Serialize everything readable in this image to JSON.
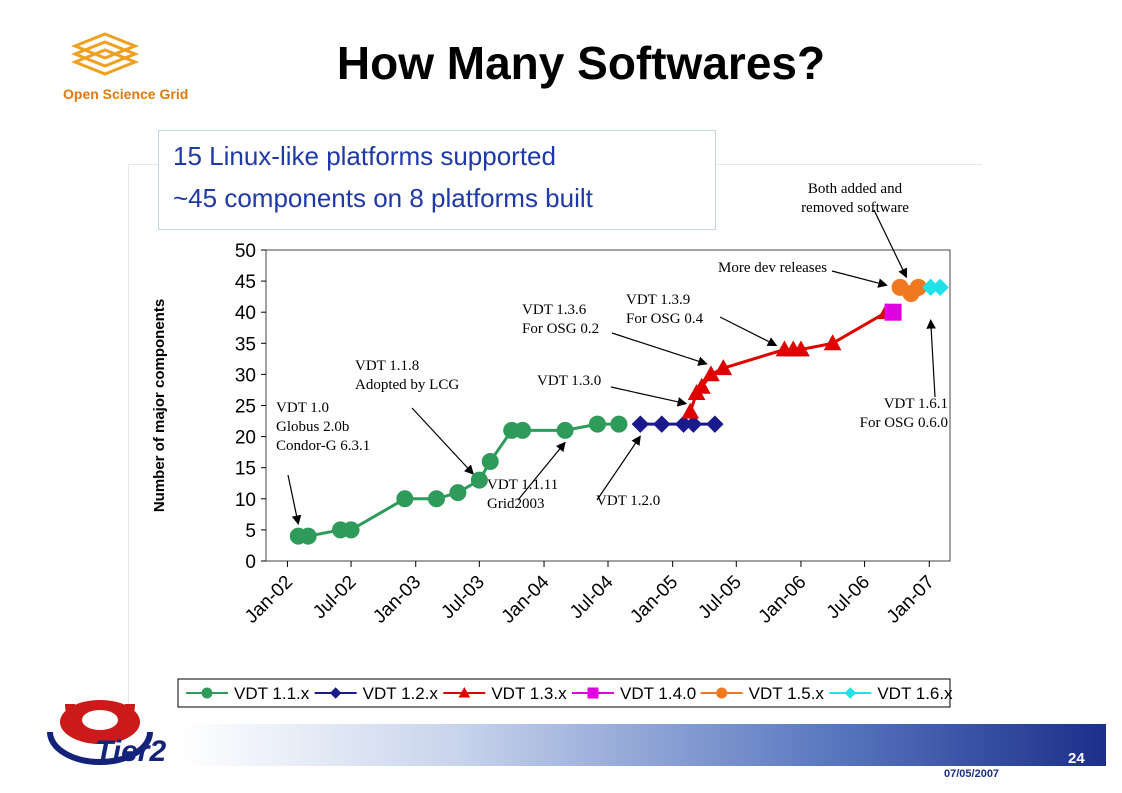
{
  "slide": {
    "title": "How Many Softwares?",
    "logo_text": "Open Science Grid",
    "box_line1": "15 Linux-like platforms supported",
    "box_line2": "~45 components on 8 platforms built",
    "footer_logo_text": "Tier2",
    "slide_number": "24",
    "date": "07/05/2007",
    "colors": {
      "title_box_text": "#1f3aa8",
      "footer_dark": "#1b2f8a"
    }
  },
  "chart_data": {
    "type": "line",
    "ylabel": "Number of major components",
    "ylim": [
      0,
      50
    ],
    "yticks": [
      0,
      5,
      10,
      15,
      20,
      25,
      30,
      35,
      40,
      45,
      50
    ],
    "xlim": [
      "2001-11-01",
      "2007-03-01"
    ],
    "xtick_labels": [
      "Jan-02",
      "Jul-02",
      "Jan-03",
      "Jul-03",
      "Jan-04",
      "Jul-04",
      "Jan-05",
      "Jul-05",
      "Jan-06",
      "Jul-06",
      "Jan-07"
    ],
    "xtick_dates": [
      "2002-01-01",
      "2002-07-01",
      "2003-01-01",
      "2003-07-01",
      "2004-01-01",
      "2004-07-01",
      "2005-01-01",
      "2005-07-01",
      "2006-01-01",
      "2006-07-01",
      "2007-01-01"
    ],
    "grid": false,
    "legend_position": "bottom",
    "series": [
      {
        "name": "VDT 1.1.x",
        "color": "#2e9b5a",
        "marker": "circle",
        "points": [
          [
            "2002-02-01",
            4
          ],
          [
            "2002-03-01",
            4
          ],
          [
            "2002-06-01",
            5
          ],
          [
            "2002-07-01",
            5
          ],
          [
            "2002-12-01",
            10
          ],
          [
            "2003-03-01",
            10
          ],
          [
            "2003-05-01",
            11
          ],
          [
            "2003-07-01",
            13
          ],
          [
            "2003-08-01",
            16
          ],
          [
            "2003-10-01",
            21
          ],
          [
            "2003-11-01",
            21
          ],
          [
            "2004-03-01",
            21
          ],
          [
            "2004-06-01",
            22
          ],
          [
            "2004-08-01",
            22
          ]
        ]
      },
      {
        "name": "VDT 1.2.x",
        "color": "#1a1a8c",
        "marker": "diamond",
        "points": [
          [
            "2004-10-01",
            22
          ],
          [
            "2004-12-01",
            22
          ],
          [
            "2005-02-01",
            22
          ],
          [
            "2005-03-01",
            22
          ],
          [
            "2005-05-01",
            22
          ]
        ]
      },
      {
        "name": "VDT 1.3.x",
        "color": "#e00000",
        "marker": "triangle",
        "points": [
          [
            "2005-02-20",
            24
          ],
          [
            "2005-03-10",
            27
          ],
          [
            "2005-03-25",
            28
          ],
          [
            "2005-04-20",
            30
          ],
          [
            "2005-05-25",
            31
          ],
          [
            "2005-11-15",
            34
          ],
          [
            "2005-12-10",
            34
          ],
          [
            "2006-01-01",
            34
          ],
          [
            "2006-04-01",
            35
          ],
          [
            "2006-09-01",
            40
          ]
        ]
      },
      {
        "name": "VDT 1.4.0",
        "color": "#e000e0",
        "marker": "square",
        "points": [
          [
            "2006-09-20",
            40
          ]
        ]
      },
      {
        "name": "VDT 1.5.x",
        "color": "#f07820",
        "marker": "circle",
        "points": [
          [
            "2006-10-10",
            44
          ],
          [
            "2006-11-10",
            43
          ],
          [
            "2006-12-01",
            44
          ]
        ]
      },
      {
        "name": "VDT 1.6.x",
        "color": "#20e0e8",
        "marker": "diamond",
        "points": [
          [
            "2007-01-05",
            44
          ],
          [
            "2007-02-01",
            44
          ]
        ]
      }
    ],
    "annotations": [
      {
        "text": [
          "VDT 1.0",
          "Globus 2.0b",
          "Condor-G 6.3.1"
        ],
        "target": [
          "2002-02-01",
          4
        ]
      },
      {
        "text": [
          "VDT 1.1.8",
          "Adopted by LCG"
        ],
        "target": [
          "2003-07-01",
          13
        ]
      },
      {
        "text": [
          "VDT 1.1.11",
          "Grid2003"
        ],
        "target": [
          "2004-03-01",
          21
        ]
      },
      {
        "text": [
          "VDT 1.2.0"
        ],
        "target": [
          "2004-10-01",
          22
        ]
      },
      {
        "text": [
          "VDT 1.3.0"
        ],
        "target": [
          "2005-02-20",
          24
        ]
      },
      {
        "text": [
          "VDT 1.3.6",
          "For OSG 0.2"
        ],
        "target": [
          "2005-05-01",
          32
        ]
      },
      {
        "text": [
          "VDT 1.3.9",
          "For OSG 0.4"
        ],
        "target": [
          "2005-11-15",
          34
        ]
      },
      {
        "text": [
          "More dev releases"
        ],
        "target": [
          "2006-10-01",
          44
        ]
      },
      {
        "text": [
          "Both added and",
          "removed software"
        ],
        "target": [
          "2006-11-20",
          44
        ]
      },
      {
        "text": [
          "VDT 1.6.1",
          "For OSG 0.6.0"
        ],
        "target": [
          "2007-01-05",
          41
        ]
      }
    ]
  }
}
